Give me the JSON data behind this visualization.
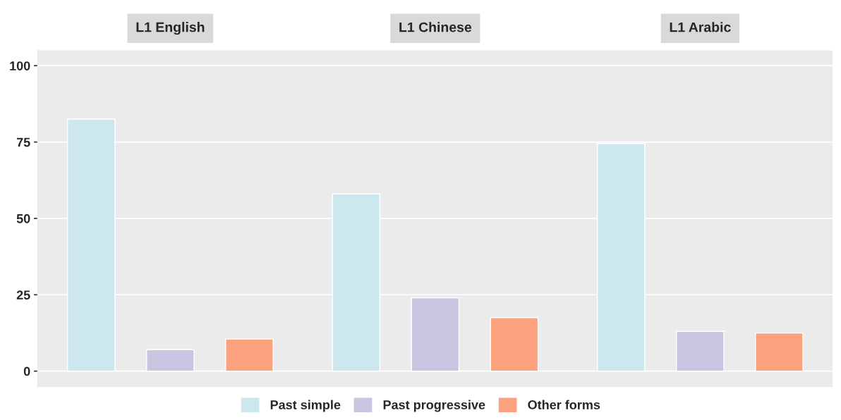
{
  "chart_data": {
    "type": "bar",
    "categories": [
      "L1 English",
      "L1 Chinese",
      "L1 Arabic"
    ],
    "ylim": [
      -5,
      105
    ],
    "yticks": [
      0,
      25,
      50,
      75,
      100
    ],
    "grid": "y",
    "legend": "bottom",
    "series": [
      {
        "name": "Past simple",
        "color": "#cce7ee",
        "values": [
          82.5,
          58,
          74.5
        ]
      },
      {
        "name": "Past progressive",
        "color": "#c9c4e0",
        "values": [
          7,
          24,
          13
        ]
      },
      {
        "name": "Other forms",
        "color": "#fca17d",
        "values": [
          10.5,
          17.5,
          12.5
        ]
      }
    ]
  }
}
